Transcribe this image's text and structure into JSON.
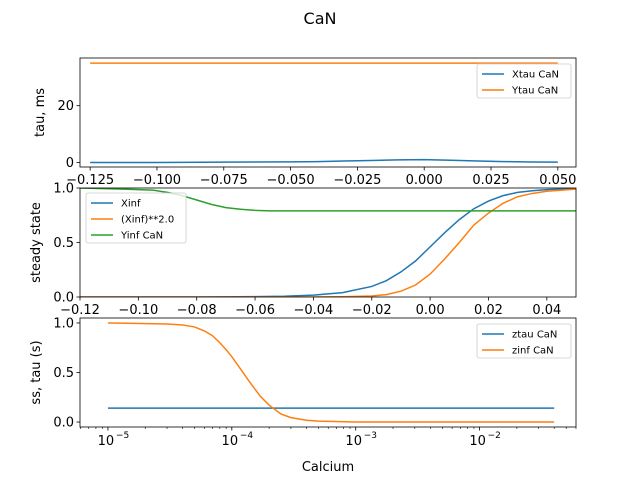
{
  "figure": {
    "title": "CaN"
  },
  "colors": {
    "blue": "#1f77b4",
    "orange": "#ff7f0e",
    "green": "#2ca02c"
  },
  "chart_data": [
    {
      "type": "line",
      "ylabel": "tau, ms",
      "xlim": [
        -0.1288,
        0.0568
      ],
      "ylim": [
        -1.6,
        36.8
      ],
      "xticks": [
        -0.125,
        -0.1,
        -0.075,
        -0.05,
        -0.025,
        0.0,
        0.025,
        0.05
      ],
      "xtick_labels": [
        "−0.125",
        "−0.100",
        "−0.075",
        "−0.050",
        "−0.025",
        "0.000",
        "0.025",
        "0.050"
      ],
      "yticks": [
        0,
        20
      ],
      "ytick_labels": [
        "0",
        "20"
      ],
      "legend": "upper right",
      "series": [
        {
          "name": "Xtau CaN",
          "color": "blue",
          "x": [
            -0.125,
            -0.1,
            -0.075,
            -0.05,
            -0.04,
            -0.03,
            -0.02,
            -0.01,
            0.0,
            0.01,
            0.02,
            0.03,
            0.04,
            0.05
          ],
          "y": [
            0.0,
            0.0,
            0.1,
            0.2,
            0.3,
            0.5,
            0.7,
            0.9,
            1.0,
            0.8,
            0.5,
            0.3,
            0.15,
            0.1
          ]
        },
        {
          "name": "Ytau CaN",
          "color": "orange",
          "x": [
            -0.125,
            0.05
          ],
          "y": [
            35.0,
            35.0
          ]
        }
      ]
    },
    {
      "type": "line",
      "ylabel": "steady state",
      "xlim": [
        -0.12,
        0.05
      ],
      "ylim": [
        0.0,
        1.0
      ],
      "xticks": [
        -0.12,
        -0.1,
        -0.08,
        -0.06,
        -0.04,
        -0.02,
        0.0,
        0.02,
        0.04
      ],
      "xtick_labels": [
        "−0.12",
        "−0.10",
        "−0.08",
        "−0.06",
        "−0.04",
        "−0.02",
        "0.00",
        "0.02",
        "0.04"
      ],
      "yticks": [
        0.0,
        0.5,
        1.0
      ],
      "ytick_labels": [
        "0.0",
        "0.5",
        "1.0"
      ],
      "legend": "upper left",
      "series": [
        {
          "name": "Xinf",
          "color": "blue",
          "x": [
            -0.12,
            -0.08,
            -0.06,
            -0.05,
            -0.04,
            -0.03,
            -0.02,
            -0.015,
            -0.01,
            -0.005,
            0.0,
            0.005,
            0.01,
            0.015,
            0.02,
            0.025,
            0.03,
            0.035,
            0.04,
            0.05
          ],
          "y": [
            0.0,
            0.0,
            0.003,
            0.007,
            0.017,
            0.04,
            0.097,
            0.15,
            0.23,
            0.33,
            0.46,
            0.59,
            0.71,
            0.81,
            0.88,
            0.93,
            0.96,
            0.975,
            0.985,
            0.995
          ]
        },
        {
          "name": "(Xinf)**2.0",
          "color": "orange",
          "x": [
            -0.12,
            -0.06,
            -0.04,
            -0.03,
            -0.02,
            -0.015,
            -0.01,
            -0.005,
            0.0,
            0.005,
            0.01,
            0.015,
            0.02,
            0.025,
            0.03,
            0.035,
            0.04,
            0.05
          ],
          "y": [
            0.0,
            0.0,
            0.0,
            0.002,
            0.009,
            0.022,
            0.053,
            0.11,
            0.21,
            0.35,
            0.5,
            0.66,
            0.77,
            0.86,
            0.92,
            0.95,
            0.97,
            0.99
          ]
        },
        {
          "name": "Yinf CaN",
          "color": "green",
          "x": [
            -0.12,
            -0.105,
            -0.095,
            -0.09,
            -0.085,
            -0.08,
            -0.075,
            -0.07,
            -0.065,
            -0.06,
            -0.055,
            -0.05,
            0.05
          ],
          "y": [
            1.0,
            0.99,
            0.98,
            0.96,
            0.93,
            0.89,
            0.85,
            0.82,
            0.805,
            0.795,
            0.79,
            0.79,
            0.79
          ]
        }
      ]
    },
    {
      "type": "line",
      "xscale": "log",
      "xlabel": "Calcium",
      "ylabel": "ss, tau (s)",
      "xlim": [
        5.95e-06,
        0.06
      ],
      "ylim": [
        -0.05,
        1.05
      ],
      "xticks": [
        1e-05,
        0.0001,
        0.001,
        0.01
      ],
      "xtick_labels": [
        [
          "10",
          "−5"
        ],
        [
          "10",
          "−4"
        ],
        [
          "10",
          "−3"
        ],
        [
          "10",
          "−2"
        ]
      ],
      "yticks": [
        0.0,
        0.5,
        1.0
      ],
      "ytick_labels": [
        "0.0",
        "0.5",
        "1.0"
      ],
      "legend": "upper right",
      "series": [
        {
          "name": "ztau CaN",
          "color": "blue",
          "x": [
            1e-05,
            0.04
          ],
          "y": [
            0.14,
            0.14
          ]
        },
        {
          "name": "zinf CaN",
          "color": "orange",
          "x": [
            1e-05,
            3e-05,
            4e-05,
            5e-05,
            6e-05,
            7e-05,
            8e-05,
            9e-05,
            0.0001,
            0.00012,
            0.00014,
            0.00017,
            0.0002,
            0.00025,
            0.0003,
            0.0004,
            0.0005,
            0.001,
            0.01,
            0.04
          ],
          "y": [
            1.0,
            0.99,
            0.98,
            0.96,
            0.92,
            0.87,
            0.8,
            0.73,
            0.66,
            0.52,
            0.4,
            0.26,
            0.17,
            0.08,
            0.045,
            0.018,
            0.009,
            0.001,
            0.0,
            0.0
          ]
        }
      ]
    }
  ]
}
